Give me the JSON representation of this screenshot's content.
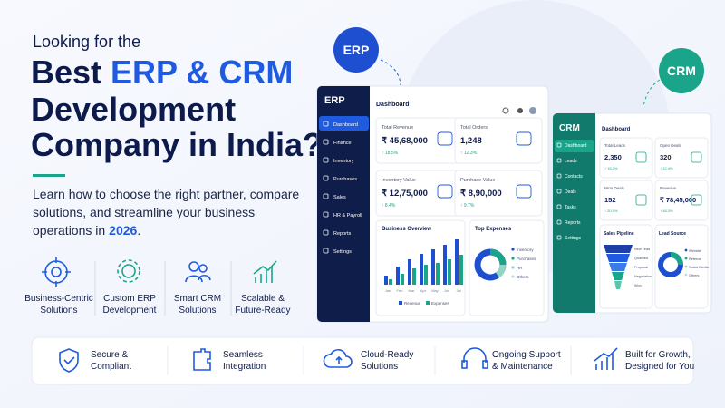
{
  "header": {
    "kicker": "Looking for the",
    "title_prefix": "Best",
    "title_highlight": "ERP & CRM",
    "title_line2": "Development",
    "title_line3": "Company in India?"
  },
  "description": {
    "lines": [
      "Learn how to choose the right partner, compare",
      "solutions, and streamline your business"
    ],
    "last_prefix": "operations in",
    "year": "2026",
    "end": "."
  },
  "features": [
    {
      "lines": [
        "Business-Centric",
        "Solutions"
      ]
    },
    {
      "lines": [
        "Custom ERP",
        "Development"
      ]
    },
    {
      "lines": [
        "Smart CRM",
        "Solutions"
      ]
    },
    {
      "lines": [
        "Scalable &",
        "Future-Ready"
      ]
    }
  ],
  "benefits": [
    {
      "lines": [
        "Secure &",
        "Compliant"
      ]
    },
    {
      "lines": [
        "Seamless",
        "Integration"
      ]
    },
    {
      "lines": [
        "Cloud-Ready",
        "Solutions"
      ]
    },
    {
      "lines": [
        "Ongoing Support",
        "& Maintenance"
      ]
    },
    {
      "lines": [
        "Built for Growth,",
        "Designed for You"
      ]
    }
  ],
  "badges": {
    "erp": "ERP",
    "crm": "CRM"
  },
  "erp": {
    "logo": "ERP",
    "nav": [
      "Dashboard",
      "Finance",
      "Inventory",
      "Purchases",
      "Sales",
      "HR & Payroll",
      "Reports",
      "Settings"
    ],
    "header": "Dashboard",
    "cards": [
      {
        "label": "Total Revenue",
        "value": "₹ 45,68,000",
        "change": "↑ 18.5%"
      },
      {
        "label": "Total Orders",
        "value": "1,248",
        "change": "↑ 12.3%"
      },
      {
        "label": "Inventory Value",
        "value": "₹ 12,75,000",
        "change": "↑ 8.4%"
      },
      {
        "label": "Purchase Value",
        "value": "₹ 8,90,000",
        "change": "↑ 9.7%"
      }
    ],
    "overview_title": "Business Overview",
    "months": [
      "Jan",
      "Feb",
      "Mar",
      "Apr",
      "May",
      "Jun",
      "Jul"
    ],
    "overview_legend": [
      "Revenue",
      "Expenses"
    ],
    "expenses_title": "Top Expenses",
    "expenses_legend": [
      "Inventory",
      "Purchases",
      "HR",
      "Others"
    ]
  },
  "crm": {
    "logo": "CRM",
    "nav": [
      "Dashboard",
      "Leads",
      "Contacts",
      "Deals",
      "Tasks",
      "Reports",
      "Settings"
    ],
    "header": "Dashboard",
    "cards": [
      {
        "label": "Total Leads",
        "value": "2,350",
        "change": "↑ 15.2%"
      },
      {
        "label": "Open Deals",
        "value": "320",
        "change": "↑ 12.4%"
      },
      {
        "label": "Won Deals",
        "value": "152",
        "change": "↑ 20.5%"
      },
      {
        "label": "Revenue",
        "value": "₹ 78,45,000",
        "change": "↑ 18.3%"
      }
    ],
    "pipeline_title": "Sales Pipeline",
    "pipeline_stages": [
      "New Lead",
      "Qualified",
      "Proposal",
      "Negotiation",
      "Won"
    ],
    "source_title": "Lead Source",
    "source_legend": [
      "Website",
      "Referral",
      "Social Media",
      "Others"
    ]
  }
}
